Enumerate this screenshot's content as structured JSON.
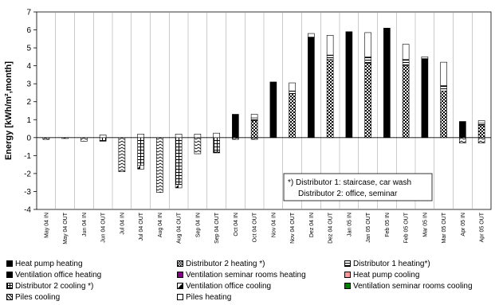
{
  "chart_data": {
    "type": "bar",
    "stacked": true,
    "ylabel": "Energy [kWh/m²,month]",
    "ylim": [
      -4,
      7
    ],
    "yticks": [
      "-4",
      "-3",
      "-2",
      "-1",
      "0",
      "1",
      "2",
      "3",
      "4",
      "5",
      "6",
      "7"
    ],
    "grid": "vertical",
    "categories": [
      "May 04 IN",
      "May 04 OUT",
      "Jun 04 IN",
      "Jun 04 OUT",
      "Jul 04 IN",
      "Jul 04 OUT",
      "Aug 04 IN",
      "Aug 04 OUT",
      "Sep 04 IN",
      "Sep 04 OUT",
      "Oct 04 IN",
      "Oct 04 OUT",
      "Nov 04 IN",
      "Nov 04 OUT",
      "Dez 04 IN",
      "Dez 04 OUT",
      "Jan 05 IN",
      "Jan 05 OUT",
      "Feb 05 IN",
      "Feb 05 OUT",
      "Mar 05 IN",
      "Mar 05 OUT",
      "Apr 05 IN",
      "Apr 05 OUT"
    ],
    "series": [
      {
        "name": "Heat pump heating",
        "pattern": "solid-black",
        "values": [
          0,
          0,
          0,
          0,
          0,
          0,
          0,
          0,
          0,
          0,
          1.3,
          0,
          3.1,
          0,
          5.6,
          0,
          5.9,
          0,
          6.1,
          0,
          4.4,
          0,
          0.9,
          0
        ]
      },
      {
        "name": "Distributor 2 heating *)",
        "pattern": "checker",
        "values": [
          0,
          0,
          0,
          0,
          0,
          0,
          0,
          0,
          0,
          0,
          0,
          0.95,
          0,
          2.45,
          0,
          4.35,
          0,
          4.15,
          0,
          4.0,
          0,
          2.6,
          0,
          0.7
        ]
      },
      {
        "name": "Distributor 1 heating*)",
        "pattern": "hlines",
        "values": [
          0,
          0,
          0,
          0,
          0,
          0,
          0,
          0,
          0,
          0,
          0,
          0.15,
          0,
          0.15,
          0,
          0.25,
          0,
          0.35,
          0,
          0.35,
          0,
          0.3,
          0,
          0.1
        ]
      },
      {
        "name": "Ventilation seminar rooms heating",
        "pattern": "solid-purple",
        "values": [
          0,
          0,
          0,
          0,
          0,
          0,
          0,
          0,
          0,
          0,
          0,
          0,
          0,
          0,
          0,
          0,
          0,
          0,
          0,
          0,
          0,
          0,
          0,
          0
        ]
      },
      {
        "name": "Heat pump cooling",
        "pattern": "solid-pink",
        "values": [
          0,
          0,
          0,
          0,
          0,
          0,
          0,
          0,
          0,
          0,
          0,
          0,
          0,
          0,
          0,
          0,
          0,
          0,
          0,
          0,
          0,
          0,
          0,
          0
        ]
      },
      {
        "name": "Distributor 2 cooling *)",
        "pattern": "grid",
        "values": [
          0,
          0,
          0,
          -0.2,
          0,
          -1.55,
          0,
          -2.6,
          0,
          -0.8,
          0,
          0,
          0,
          0,
          0,
          0,
          0,
          0,
          0,
          0,
          0,
          0,
          0,
          0
        ]
      },
      {
        "name": "Ventilation office cooling",
        "pattern": "half-black",
        "values": [
          0,
          0,
          0,
          0,
          0,
          -0.2,
          0,
          -0.2,
          0,
          -0.05,
          0,
          0,
          0,
          0,
          0,
          0,
          0,
          0,
          0,
          0,
          0,
          0,
          0,
          0
        ]
      },
      {
        "name": "Ventilation seminar rooms cooling",
        "pattern": "solid-green",
        "values": [
          0,
          0,
          0,
          0,
          0,
          0,
          0,
          0,
          0,
          0,
          0,
          0,
          0,
          0,
          0,
          0,
          0,
          0,
          0,
          0,
          0,
          0,
          0,
          0
        ]
      },
      {
        "name": "Piles cooling",
        "pattern": "zigzag",
        "values": [
          -0.1,
          -0.05,
          -0.2,
          0,
          -1.9,
          0,
          -3.05,
          0,
          -0.9,
          0,
          -0.1,
          -0.1,
          0,
          0,
          0,
          0,
          0,
          0,
          0,
          0,
          0,
          0,
          -0.3,
          -0.3
        ]
      },
      {
        "name": "Piles heating",
        "pattern": "white",
        "values": [
          0,
          0,
          0,
          0.15,
          0,
          0.2,
          0,
          0.2,
          0.2,
          0.25,
          0,
          0.2,
          0,
          0.45,
          0.2,
          1.1,
          0,
          1.35,
          0,
          0.85,
          0.1,
          1.3,
          0,
          0.15
        ]
      }
    ],
    "legend_rows": [
      [
        "Heat pump heating",
        "Distributor 2 heating *)",
        "Distributor 1 heating*)"
      ],
      [
        "Ventilation office heating",
        "Ventilation seminar rooms heating",
        "Heat pump cooling"
      ],
      [
        "Distributor 2 cooling *)",
        "Ventilation office cooling",
        "Ventilation seminar rooms cooling"
      ],
      [
        "Piles cooling",
        "Piles heating"
      ]
    ],
    "legend_patterns": {
      "Heat pump heating": "solid-black",
      "Distributor 2 heating *)": "checker",
      "Distributor 1 heating*)": "hlines",
      "Ventilation office heating": "solid-black",
      "Ventilation seminar rooms heating": "solid-purple",
      "Heat pump cooling": "solid-pink",
      "Distributor 2 cooling *)": "grid",
      "Ventilation office cooling": "half-black",
      "Ventilation seminar rooms cooling": "solid-green",
      "Piles cooling": "zigzag",
      "Piles heating": "white"
    },
    "annotation": [
      "*) Distributor 1: staircase, car wash",
      "Distributor 2: office, seminar"
    ],
    "colors": {
      "purple": "#800080",
      "pink": "#ff9999",
      "green": "#008000",
      "black": "#000000"
    }
  }
}
